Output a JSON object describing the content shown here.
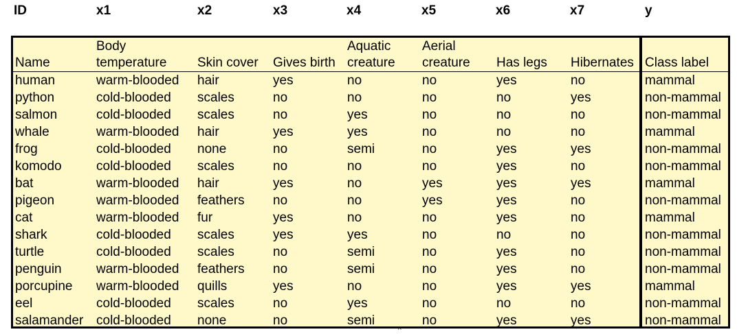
{
  "id_row": [
    "ID",
    "x1",
    "x2",
    "x3",
    "x4",
    "x5",
    "x6",
    "x7",
    "y"
  ],
  "headers": [
    [
      "Name"
    ],
    [
      "Body",
      "temperature"
    ],
    [
      "Skin cover"
    ],
    [
      "Gives birth"
    ],
    [
      "Aquatic",
      "creature"
    ],
    [
      "Aerial",
      "creature"
    ],
    [
      "Has legs"
    ],
    [
      "Hibernates"
    ],
    [
      "Class label"
    ]
  ],
  "rows": [
    [
      "human",
      "warm-blooded",
      "hair",
      "yes",
      "no",
      "no",
      "yes",
      "no",
      "mammal"
    ],
    [
      "python",
      "cold-blooded",
      "scales",
      "no",
      "no",
      "no",
      "no",
      "yes",
      "non-mammal"
    ],
    [
      "salmon",
      "cold-blooded",
      "scales",
      "no",
      "yes",
      "no",
      "no",
      "no",
      "non-mammal"
    ],
    [
      "whale",
      "warm-blooded",
      "hair",
      "yes",
      "yes",
      "no",
      "no",
      "no",
      "mammal"
    ],
    [
      "frog",
      "cold-blooded",
      "none",
      "no",
      "semi",
      "no",
      "yes",
      "yes",
      "non-mammal"
    ],
    [
      "komodo",
      "cold-blooded",
      "scales",
      "no",
      "no",
      "no",
      "yes",
      "no",
      "non-mammal"
    ],
    [
      "bat",
      "warm-blooded",
      "hair",
      "yes",
      "no",
      "yes",
      "yes",
      "yes",
      "mammal"
    ],
    [
      "pigeon",
      "warm-blooded",
      "feathers",
      "no",
      "no",
      "yes",
      "yes",
      "no",
      "non-mammal"
    ],
    [
      "cat",
      "warm-blooded",
      "fur",
      "yes",
      "no",
      "no",
      "yes",
      "no",
      "mammal"
    ],
    [
      "shark",
      "cold-blooded",
      "scales",
      "yes",
      "yes",
      "no",
      "no",
      "no",
      "non-mammal"
    ],
    [
      "turtle",
      "cold-blooded",
      "scales",
      "no",
      "semi",
      "no",
      "yes",
      "no",
      "non-mammal"
    ],
    [
      "penguin",
      "warm-blooded",
      "feathers",
      "no",
      "semi",
      "no",
      "yes",
      "no",
      "non-mammal"
    ],
    [
      "porcupine",
      "warm-blooded",
      "quills",
      "yes",
      "no",
      "no",
      "yes",
      "yes",
      "mammal"
    ],
    [
      "eel",
      "cold-blooded",
      "scales",
      "no",
      "yes",
      "no",
      "no",
      "no",
      "non-mammal"
    ],
    [
      "salamander",
      "cold-blooded",
      "none",
      "no",
      "semi",
      "no",
      "yes",
      "yes",
      "non-mammal"
    ]
  ],
  "colors": {
    "table_background": "#fff8c9",
    "border": "#000000"
  }
}
